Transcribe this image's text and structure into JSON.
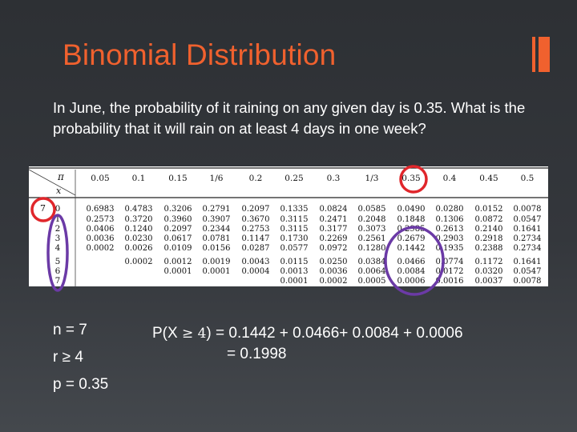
{
  "slide": {
    "title": "Binomial Distribution",
    "accent_color": "#f0612e",
    "question": "In June, the probability of it raining on any given day is 0.35. What is the probability that it will rain on at least 4 days in one week?",
    "params": {
      "n": "n = 7",
      "r": "r ≥ 4",
      "p": "p = 0.35"
    },
    "calc": {
      "lhs_open": "P(X ",
      "ge": "≥ 4",
      "lhs_close": ") = 0.1442 + 0.0466+ 0.0084 + 0.0006",
      "line2": "= 0.1998"
    },
    "highlight_colors": {
      "red": "#e0262b",
      "purple": "#6b3aa6"
    }
  },
  "table": {
    "pi_label": "π",
    "x_label": "x",
    "headers": [
      "0.05",
      "0.1",
      "0.15",
      "1/6",
      "0.2",
      "0.25",
      "0.3",
      "1/3",
      "0.35",
      "0.4",
      "0.45",
      "0.5"
    ],
    "n_label": "7",
    "x_values": [
      "0",
      "1",
      "2",
      "3",
      "4",
      "5",
      "6",
      "7"
    ],
    "rows": [
      [
        "0.6983",
        "0.4783",
        "0.3206",
        "0.2791",
        "0.2097",
        "0.1335",
        "0.0824",
        "0.0585",
        "0.0490",
        "0.0280",
        "0.0152",
        "0.0078"
      ],
      [
        "0.2573",
        "0.3720",
        "0.3960",
        "0.3907",
        "0.3670",
        "0.3115",
        "0.2471",
        "0.2048",
        "0.1848",
        "0.1306",
        "0.0872",
        "0.0547"
      ],
      [
        "0.0406",
        "0.1240",
        "0.2097",
        "0.2344",
        "0.2753",
        "0.3115",
        "0.3177",
        "0.3073",
        "0.2985",
        "0.2613",
        "0.2140",
        "0.1641"
      ],
      [
        "0.0036",
        "0.0230",
        "0.0617",
        "0.0781",
        "0.1147",
        "0.1730",
        "0.2269",
        "0.2561",
        "0.2679",
        "0.2903",
        "0.2918",
        "0.2734"
      ],
      [
        "0.0002",
        "0.0026",
        "0.0109",
        "0.0156",
        "0.0287",
        "0.0577",
        "0.0972",
        "0.1280",
        "0.1442",
        "0.1935",
        "0.2388",
        "0.2734"
      ],
      [
        "",
        "0.0002",
        "0.0012",
        "0.0019",
        "0.0043",
        "0.0115",
        "0.0250",
        "0.0384",
        "0.0466",
        "0.0774",
        "0.1172",
        "0.1641"
      ],
      [
        "",
        "",
        "0.0001",
        "0.0001",
        "0.0004",
        "0.0013",
        "0.0036",
        "0.0064",
        "0.0084",
        "0.0172",
        "0.0320",
        "0.0547"
      ],
      [
        "",
        "",
        "",
        "",
        "",
        "0.0001",
        "0.0002",
        "0.0005",
        "0.0006",
        "0.0016",
        "0.0037",
        "0.0078"
      ]
    ]
  }
}
